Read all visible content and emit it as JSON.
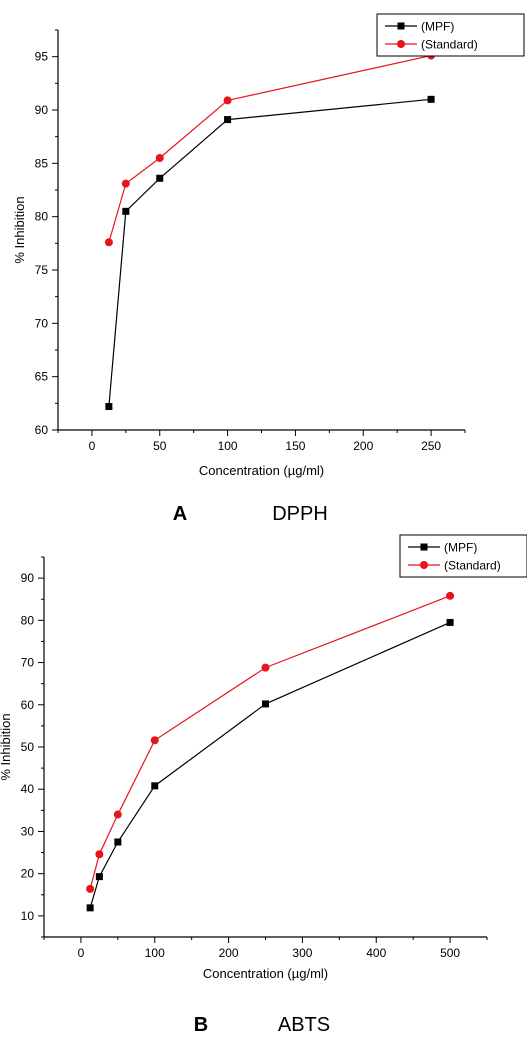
{
  "chart_data": [
    {
      "type": "line",
      "panel_letter": "A",
      "panel_name": "DPPH",
      "xlabel": "Concentration (µg/ml)",
      "ylabel": "% Inhibition",
      "xlim": [
        -25,
        275
      ],
      "ylim": [
        60,
        97.5
      ],
      "xticks": [
        0,
        50,
        100,
        150,
        200,
        250
      ],
      "yticks": [
        60,
        65,
        70,
        75,
        80,
        85,
        90,
        95
      ],
      "grid": false,
      "legend_position": "top-right",
      "series": [
        {
          "name": "(MPF)",
          "color": "#000000",
          "marker": "square",
          "x": [
            12.5,
            25,
            50,
            100,
            250
          ],
          "y": [
            62.2,
            80.5,
            83.6,
            89.1,
            91.0
          ]
        },
        {
          "name": "(Standard)",
          "color": "#e8141b",
          "marker": "circle",
          "x": [
            12.5,
            25,
            50,
            100,
            250
          ],
          "y": [
            77.6,
            83.1,
            85.5,
            90.9,
            95.1
          ]
        }
      ]
    },
    {
      "type": "line",
      "panel_letter": "B",
      "panel_name": "ABTS",
      "xlabel": "Concentration (µg/ml)",
      "ylabel": "% Inhibition",
      "xlim": [
        -50,
        550
      ],
      "ylim": [
        5,
        95
      ],
      "xticks": [
        0,
        100,
        200,
        300,
        400,
        500
      ],
      "yticks": [
        10,
        20,
        30,
        40,
        50,
        60,
        70,
        80,
        90
      ],
      "grid": false,
      "legend_position": "top-right",
      "series": [
        {
          "name": "(MPF)",
          "color": "#000000",
          "marker": "square",
          "x": [
            12.5,
            25,
            50,
            100,
            250,
            500
          ],
          "y": [
            11.9,
            19.3,
            27.5,
            40.8,
            60.2,
            79.5
          ]
        },
        {
          "name": "(Standard)",
          "color": "#e8141b",
          "marker": "circle",
          "x": [
            12.5,
            25,
            50,
            100,
            250,
            500
          ],
          "y": [
            16.4,
            24.6,
            34.0,
            51.6,
            68.8,
            85.8
          ]
        }
      ]
    }
  ]
}
